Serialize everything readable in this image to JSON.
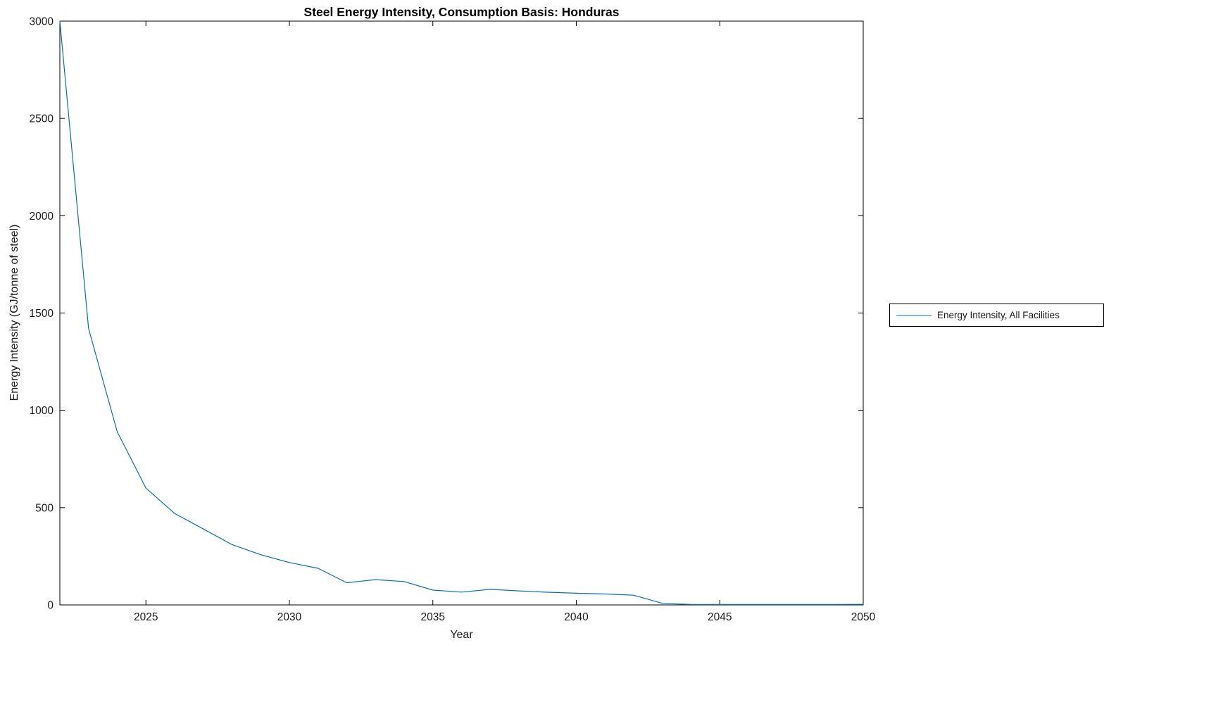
{
  "chart_data": {
    "type": "line",
    "title": "Steel Energy Intensity, Consumption Basis: Honduras",
    "xlabel": "Year",
    "ylabel": "Energy Intensity (GJ/tonne of steel)",
    "xlim": [
      2022,
      2050
    ],
    "ylim": [
      0,
      3000
    ],
    "xticks": [
      2025,
      2030,
      2035,
      2040,
      2045,
      2050
    ],
    "yticks": [
      0,
      500,
      1000,
      1500,
      2000,
      2500,
      3000
    ],
    "grid": false,
    "legend_position": "right-outside",
    "axis_color": "#000000",
    "series": [
      {
        "name": "Energy Intensity, All Facilities",
        "color": "#0072BD",
        "x": [
          2022,
          2023,
          2024,
          2025,
          2026,
          2027,
          2028,
          2029,
          2030,
          2031,
          2032,
          2033,
          2034,
          2035,
          2036,
          2037,
          2038,
          2039,
          2040,
          2041,
          2042,
          2043,
          2044,
          2045,
          2046,
          2047,
          2048,
          2049,
          2050
        ],
        "y": [
          3000,
          1420,
          890,
          600,
          470,
          390,
          310,
          258,
          218,
          188,
          114,
          130,
          120,
          76,
          66,
          80,
          72,
          65,
          60,
          56,
          50,
          8,
          2,
          2,
          2,
          2,
          2,
          2,
          3
        ]
      }
    ]
  }
}
